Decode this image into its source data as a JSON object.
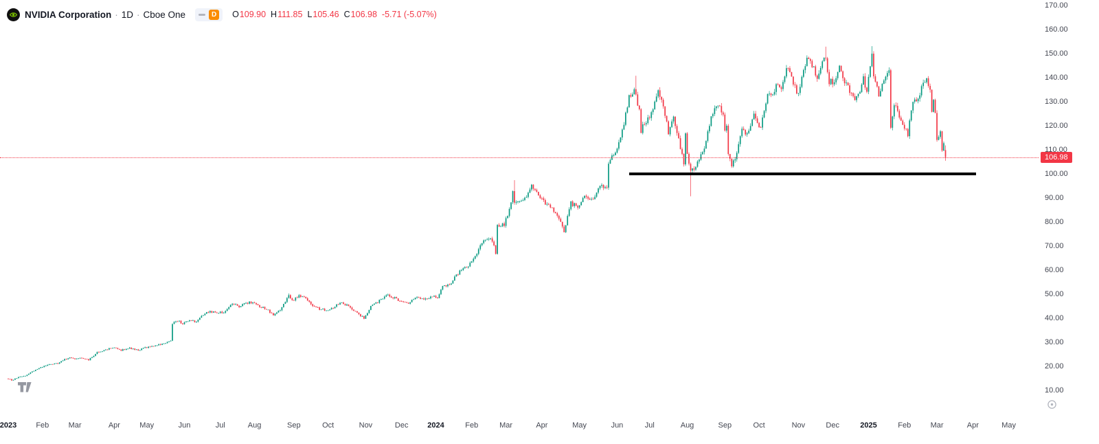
{
  "colors": {
    "background": "#FFFFFF",
    "up": "#089981",
    "down": "#F23645",
    "text": "#131722",
    "axis_text": "#434651",
    "separator": "#9598A1",
    "badge": "#FB8C00",
    "price_line": "#F23645",
    "last_price_tag_bg": "#F23645",
    "trendline": "#000000",
    "watermark": "#9598A1"
  },
  "legend": {
    "symbol": "NVIDIA Corporation",
    "separator": "·",
    "interval": "1D",
    "exchange": "Cboe One",
    "delayed_badge": "D",
    "ohlc": {
      "items": [
        {
          "label": "O",
          "value": "109.90"
        },
        {
          "label": "H",
          "value": "111.85"
        },
        {
          "label": "L",
          "value": "105.46"
        },
        {
          "label": "C",
          "value": "106.98"
        }
      ],
      "change": "-5.71 (-5.07%)"
    }
  },
  "chart_data": {
    "type": "candlestick",
    "title": "NVIDIA Corporation",
    "interval": "1D",
    "exchange": "Cboe One",
    "grid": "off",
    "legend_position": "top-left",
    "price_range_visible": [
      0,
      172
    ],
    "x_range": [
      "2023-01",
      "2025-05"
    ],
    "days_total": 549,
    "up_color": "#089981",
    "down_color": "#F23645",
    "ohlc_last": {
      "open": 109.9,
      "high": 111.85,
      "low": 105.46,
      "close": 106.98,
      "change": -5.71,
      "change_pct": -5.07
    },
    "price_line": {
      "price": 106.98,
      "label": "106.98",
      "style": "dotted",
      "color": "#F23645"
    },
    "trendline": {
      "type": "horizontal-segment",
      "price": 100.0,
      "day_start": 363,
      "day_end": 566,
      "color": "#000000",
      "width": 4
    },
    "price_ticks": [
      "170.00",
      "160.00",
      "150.00",
      "140.00",
      "130.00",
      "120.00",
      "110.00",
      "100.00",
      "90.00",
      "80.00",
      "70.00",
      "60.00",
      "50.00",
      "40.00",
      "30.00",
      "20.00",
      "10.00"
    ],
    "time_ticks": [
      {
        "text": "2023",
        "day": 0
      },
      {
        "text": "Feb",
        "day": 20
      },
      {
        "text": "Mar",
        "day": 39
      },
      {
        "text": "Apr",
        "day": 62
      },
      {
        "text": "May",
        "day": 81
      },
      {
        "text": "Jun",
        "day": 103
      },
      {
        "text": "Jul",
        "day": 124
      },
      {
        "text": "Aug",
        "day": 144
      },
      {
        "text": "Sep",
        "day": 167
      },
      {
        "text": "Oct",
        "day": 187
      },
      {
        "text": "Nov",
        "day": 209
      },
      {
        "text": "Dec",
        "day": 230
      },
      {
        "text": "2024",
        "day": 250
      },
      {
        "text": "Feb",
        "day": 271
      },
      {
        "text": "Mar",
        "day": 291
      },
      {
        "text": "Apr",
        "day": 312
      },
      {
        "text": "May",
        "day": 334
      },
      {
        "text": "Jun",
        "day": 356
      },
      {
        "text": "Jul",
        "day": 375
      },
      {
        "text": "Aug",
        "day": 397
      },
      {
        "text": "Sep",
        "day": 419
      },
      {
        "text": "Oct",
        "day": 439
      },
      {
        "text": "Nov",
        "day": 462
      },
      {
        "text": "Dec",
        "day": 482
      },
      {
        "text": "2025",
        "day": 503
      },
      {
        "text": "Feb",
        "day": 524
      },
      {
        "text": "Mar",
        "day": 543
      },
      {
        "text": "Apr",
        "day": 564
      },
      {
        "text": "May",
        "day": 585
      }
    ],
    "anchors": [
      [
        0,
        14.9
      ],
      [
        2,
        14.2
      ],
      [
        6,
        15.4
      ],
      [
        10,
        16.1
      ],
      [
        14,
        17.8
      ],
      [
        19,
        19.5
      ],
      [
        24,
        20.8
      ],
      [
        29,
        21.2
      ],
      [
        33,
        22.9
      ],
      [
        37,
        23.7
      ],
      [
        39,
        23.2
      ],
      [
        43,
        23.4
      ],
      [
        47,
        22.6
      ],
      [
        52,
        25.9
      ],
      [
        57,
        26.9
      ],
      [
        61,
        27.8
      ],
      [
        66,
        26.7
      ],
      [
        71,
        27.6
      ],
      [
        76,
        26.6
      ],
      [
        80,
        27.7
      ],
      [
        85,
        28.6
      ],
      [
        91,
        29.4
      ],
      [
        95,
        30.5
      ],
      [
        96,
        37.9
      ],
      [
        99,
        39.0
      ],
      [
        102,
        37.8
      ],
      [
        106,
        39.1
      ],
      [
        110,
        38.5
      ],
      [
        116,
        42.8
      ],
      [
        122,
        42.3
      ],
      [
        126,
        42.4
      ],
      [
        131,
        46.3
      ],
      [
        135,
        44.6
      ],
      [
        139,
        46.3
      ],
      [
        143,
        46.7
      ],
      [
        147,
        44.7
      ],
      [
        151,
        43.9
      ],
      [
        155,
        41.1
      ],
      [
        159,
        43.4
      ],
      [
        162,
        47.1
      ],
      [
        164,
        49.4
      ],
      [
        166,
        47.3
      ],
      [
        170,
        49.4
      ],
      [
        173,
        48.6
      ],
      [
        178,
        45.4
      ],
      [
        182,
        43.9
      ],
      [
        186,
        43.4
      ],
      [
        190,
        44.6
      ],
      [
        194,
        46.5
      ],
      [
        199,
        45.1
      ],
      [
        204,
        42.2
      ],
      [
        208,
        40.1
      ],
      [
        212,
        45.0
      ],
      [
        216,
        46.8
      ],
      [
        221,
        49.8
      ],
      [
        226,
        48.4
      ],
      [
        229,
        46.8
      ],
      [
        234,
        46.5
      ],
      [
        238,
        48.8
      ],
      [
        244,
        48.2
      ],
      [
        249,
        49.5
      ],
      [
        251,
        48.2
      ],
      [
        254,
        53.0
      ],
      [
        259,
        54.8
      ],
      [
        264,
        59.7
      ],
      [
        269,
        61.5
      ],
      [
        273,
        66.2
      ],
      [
        278,
        72.1
      ],
      [
        283,
        72.6
      ],
      [
        285,
        67.4
      ],
      [
        286,
        78.5
      ],
      [
        290,
        79.1
      ],
      [
        293,
        85.2
      ],
      [
        295,
        92.7
      ],
      [
        296,
        87.5
      ],
      [
        301,
        88.5
      ],
      [
        306,
        94.6
      ],
      [
        311,
        90.4
      ],
      [
        315,
        87.2
      ],
      [
        320,
        84.1
      ],
      [
        325,
        76.2
      ],
      [
        329,
        87.7
      ],
      [
        333,
        86.4
      ],
      [
        336,
        90.3
      ],
      [
        341,
        88.9
      ],
      [
        346,
        94.6
      ],
      [
        350,
        94.9
      ],
      [
        351,
        103.8
      ],
      [
        355,
        109.6
      ],
      [
        357,
        113.0
      ],
      [
        360,
        121.0
      ],
      [
        363,
        131.9
      ],
      [
        366,
        135.6
      ],
      [
        369,
        126.6
      ],
      [
        370,
        118.1
      ],
      [
        374,
        123.5
      ],
      [
        377,
        126.1
      ],
      [
        380,
        134.9
      ],
      [
        383,
        129.2
      ],
      [
        386,
        117.0
      ],
      [
        389,
        123.5
      ],
      [
        392,
        114.3
      ],
      [
        395,
        103.7
      ],
      [
        396,
        117.0
      ],
      [
        397,
        107.3
      ],
      [
        399,
        100.5
      ],
      [
        403,
        104.8
      ],
      [
        407,
        110.1
      ],
      [
        411,
        124.6
      ],
      [
        415,
        128.3
      ],
      [
        418,
        125.6
      ],
      [
        419,
        117.6
      ],
      [
        420,
        119.4
      ],
      [
        421,
        108.0
      ],
      [
        423,
        102.8
      ],
      [
        426,
        108.1
      ],
      [
        429,
        119.1
      ],
      [
        432,
        115.9
      ],
      [
        436,
        124.0
      ],
      [
        438,
        121.4
      ],
      [
        440,
        118.9
      ],
      [
        444,
        132.9
      ],
      [
        448,
        134.0
      ],
      [
        450,
        138.1
      ],
      [
        452,
        135.7
      ],
      [
        455,
        143.7
      ],
      [
        458,
        140.9
      ],
      [
        461,
        132.8
      ],
      [
        463,
        136.1
      ],
      [
        466,
        145.6
      ],
      [
        468,
        148.9
      ],
      [
        470,
        145.3
      ],
      [
        473,
        140.2
      ],
      [
        476,
        147.0
      ],
      [
        478,
        146.7
      ],
      [
        480,
        136.0
      ],
      [
        481,
        138.3
      ],
      [
        483,
        138.6
      ],
      [
        486,
        145.1
      ],
      [
        489,
        138.8
      ],
      [
        492,
        134.3
      ],
      [
        495,
        130.4
      ],
      [
        498,
        134.7
      ],
      [
        500,
        139.3
      ],
      [
        502,
        134.3
      ],
      [
        504,
        144.5
      ],
      [
        505,
        149.4
      ],
      [
        506,
        140.1
      ],
      [
        509,
        133.2
      ],
      [
        512,
        137.7
      ],
      [
        515,
        142.6
      ],
      [
        516,
        118.4
      ],
      [
        518,
        128.7
      ],
      [
        521,
        123.7
      ],
      [
        523,
        120.1
      ],
      [
        526,
        116.7
      ],
      [
        529,
        129.8
      ],
      [
        532,
        131.3
      ],
      [
        535,
        138.3
      ],
      [
        537,
        139.2
      ],
      [
        539,
        134.4
      ],
      [
        540,
        126.6
      ],
      [
        541,
        131.3
      ],
      [
        542,
        124.9
      ],
      [
        543,
        114.1
      ],
      [
        544,
        116.0
      ],
      [
        545,
        117.3
      ],
      [
        546,
        110.6
      ],
      [
        547,
        112.7
      ],
      [
        548,
        106.98
      ]
    ],
    "special_wicks": [
      {
        "day": 164,
        "high": 50.3
      },
      {
        "day": 296,
        "high": 97.4
      },
      {
        "day": 367,
        "high": 140.8
      },
      {
        "day": 399,
        "low": 90.7
      },
      {
        "day": 478,
        "high": 152.9
      },
      {
        "day": 505,
        "high": 153.1
      }
    ]
  },
  "icons": {
    "symbol_logo": "nvidia-eye-logo",
    "watermark": "tradingview-logo",
    "axis_corner": "price-scale-settings"
  }
}
